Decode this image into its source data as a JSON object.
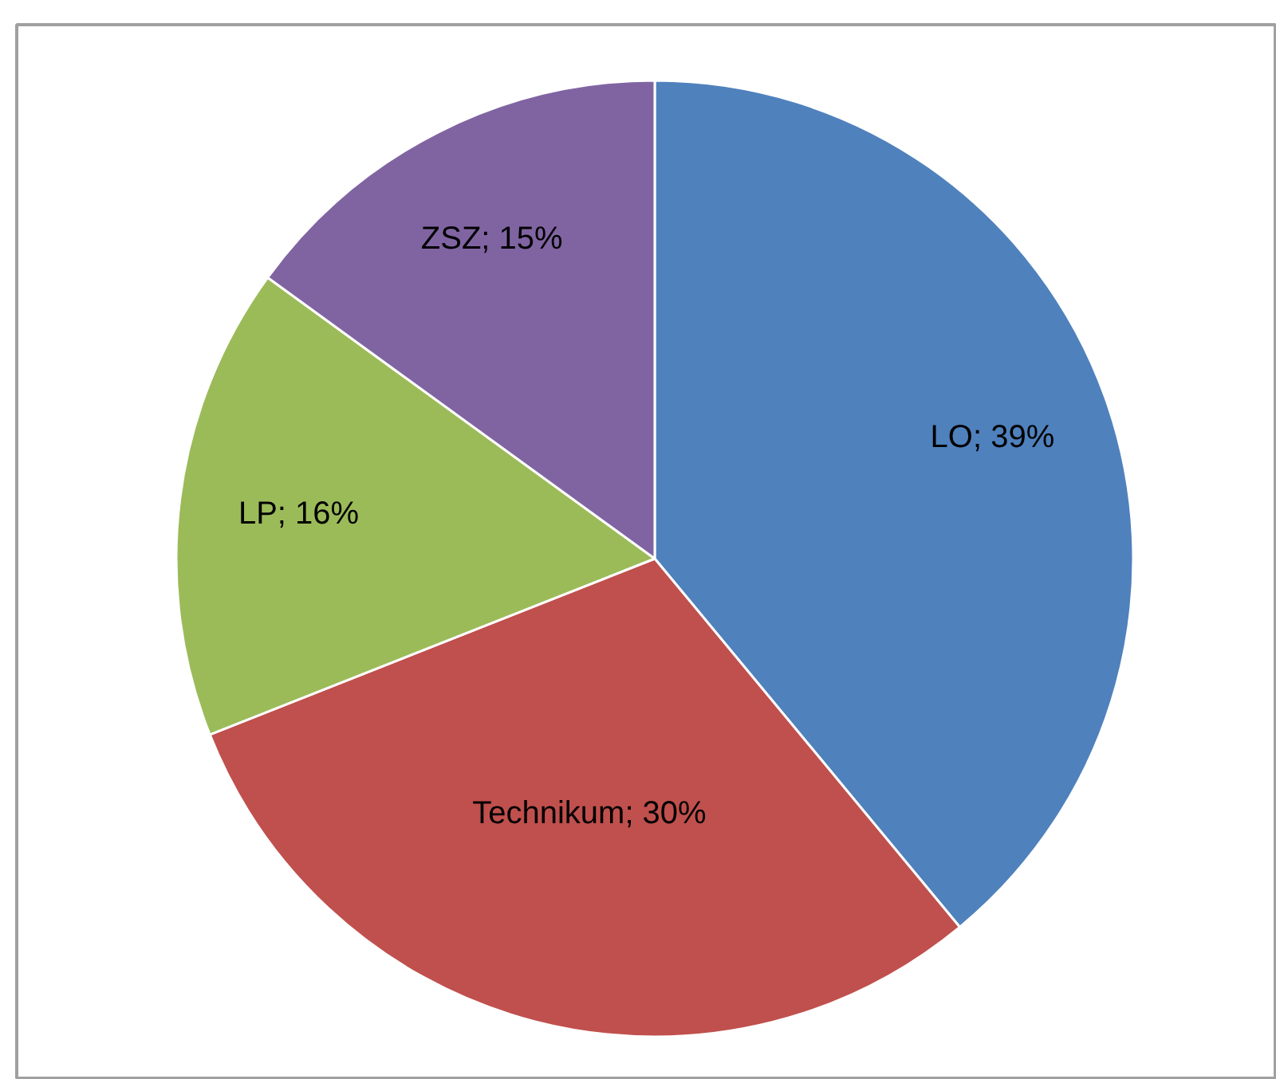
{
  "chart_data": {
    "type": "pie",
    "categories": [
      "LO",
      "Technikum",
      "LP",
      "ZSZ"
    ],
    "values": [
      39,
      30,
      16,
      15
    ],
    "colors": [
      "#4f81bd",
      "#c0504d",
      "#9bbb59",
      "#8064a2"
    ],
    "value_labels": [
      "39%",
      "30%",
      "16%",
      "15%"
    ],
    "legend": false
  }
}
